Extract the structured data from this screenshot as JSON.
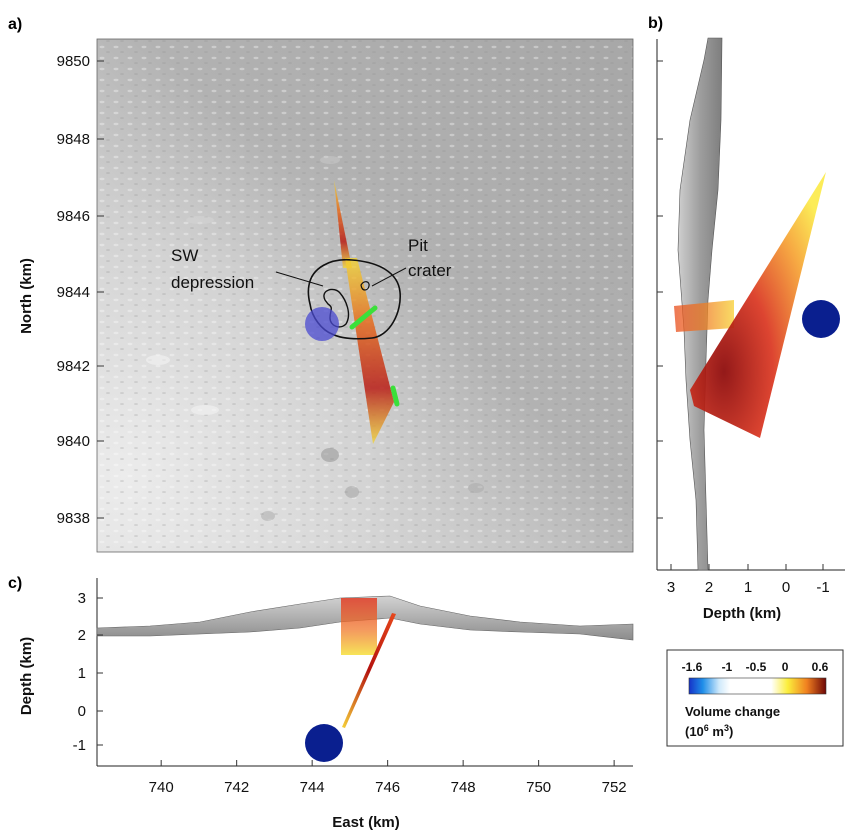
{
  "panels": {
    "a": {
      "label": "a)",
      "ylabel": "North (km)",
      "yticks": [
        "9850",
        "9848",
        "9846",
        "9844",
        "9842",
        "9840",
        "9838"
      ],
      "annotations": {
        "sw_line1": "SW",
        "sw_line2": "depression",
        "pit_line1": "Pit",
        "pit_line2": "crater"
      }
    },
    "b": {
      "label": "b)",
      "xlabel": "Depth (km)",
      "xticks": [
        "3",
        "2",
        "1",
        "0",
        "-1"
      ]
    },
    "c": {
      "label": "c)",
      "ylabel": "Depth (km)",
      "xlabel": "East (km)",
      "yticks": [
        "3",
        "2",
        "1",
        "0",
        "-1"
      ],
      "xticks": [
        "740",
        "742",
        "744",
        "746",
        "748",
        "750",
        "752"
      ]
    }
  },
  "colorbar": {
    "ticks": [
      "-1.6",
      "-1",
      "-0.5",
      "0",
      "0.6"
    ],
    "title_line1": "Volume change",
    "title_line2_prefix": "(10",
    "title_line2_exp": "6",
    "title_line2_mid": " m",
    "title_line2_exp2": "3",
    "title_line2_suffix": ")",
    "range": [
      -1.6,
      0.6
    ]
  },
  "colors": {
    "hillshade_light": "#e4e4e4",
    "hillshade_dark": "#a9a9a9",
    "source_blue": "#0a1f8f",
    "source_blue_faded": "#5a5ad0",
    "fissure_green": "#35e03a",
    "dike_red": "#c81e0f",
    "dike_yellow": "#f7e23a"
  }
}
